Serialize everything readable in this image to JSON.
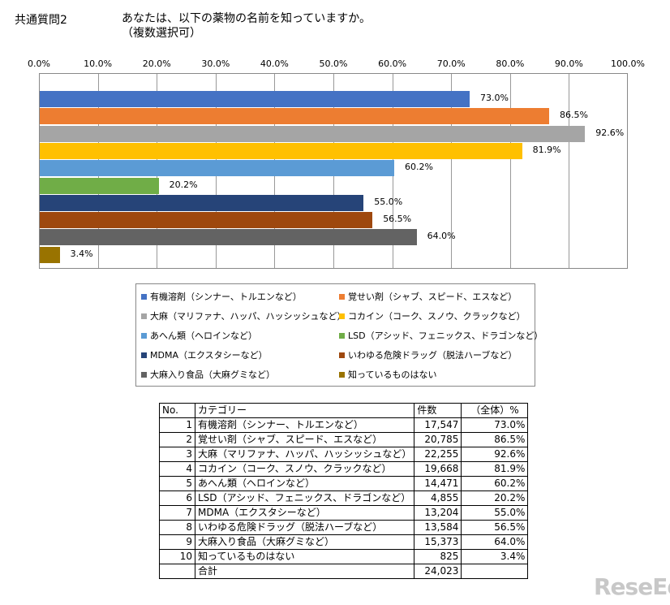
{
  "question": {
    "label": "共通質問2",
    "text": "あなたは、以下の薬物の名前を知っていますか。",
    "subtext": "（複数選択可）"
  },
  "chart_data": {
    "type": "bar",
    "orientation": "horizontal",
    "title": "あなたは、以下の薬物の名前を知っていますか。（複数選択可）",
    "xlim": [
      0,
      100
    ],
    "x_ticks": [
      "0.0%",
      "10.0%",
      "20.0%",
      "30.0%",
      "40.0%",
      "50.0%",
      "60.0%",
      "70.0%",
      "80.0%",
      "90.0%",
      "100.0%"
    ],
    "categories": [
      "有機溶剤（シンナー、トルエンなど）",
      "覚せい剤（シャブ、スピード、エスなど）",
      "大麻（マリファナ、ハッパ、ハッシッシュなど）",
      "コカイン（コーク、スノウ、クラックなど）",
      "あへん類（ヘロインなど）",
      "LSD（アシッド、フェニックス、ドラゴンなど）",
      "MDMA（エクスタシーなど）",
      "いわゆる危険ドラッグ（脱法ハーブなど）",
      "大麻入り食品（大麻グミなど）",
      "知っているものはない"
    ],
    "values": [
      73.0,
      86.5,
      92.6,
      81.9,
      60.2,
      20.2,
      55.0,
      56.5,
      64.0,
      3.4
    ],
    "value_labels": [
      "73.0%",
      "86.5%",
      "92.6%",
      "81.9%",
      "60.2%",
      "20.2%",
      "55.0%",
      "56.5%",
      "64.0%",
      "3.4%"
    ],
    "colors": [
      "#4472C4",
      "#ED7D31",
      "#A5A5A5",
      "#FFC000",
      "#5B9BD5",
      "#70AD47",
      "#264478",
      "#9E480E",
      "#636363",
      "#997300"
    ],
    "grid": true,
    "legend_position": "bottom"
  },
  "table": {
    "headers": [
      "No.",
      "カテゴリー",
      "件数",
      "（全体）%"
    ],
    "rows": [
      [
        "1",
        "有機溶剤（シンナー、トルエンなど）",
        "17,547",
        "73.0%"
      ],
      [
        "2",
        "覚せい剤（シャブ、スピード、エスなど）",
        "20,785",
        "86.5%"
      ],
      [
        "3",
        "大麻（マリファナ、ハッパ、ハッシッシュなど）",
        "22,255",
        "92.6%"
      ],
      [
        "4",
        "コカイン（コーク、スノウ、クラックなど）",
        "19,668",
        "81.9%"
      ],
      [
        "5",
        "あへん類（ヘロインなど）",
        "14,471",
        "60.2%"
      ],
      [
        "6",
        "LSD（アシッド、フェニックス、ドラゴンなど）",
        "4,855",
        "20.2%"
      ],
      [
        "7",
        "MDMA（エクスタシーなど）",
        "13,204",
        "55.0%"
      ],
      [
        "8",
        "いわゆる危険ドラッグ（脱法ハーブなど）",
        "13,584",
        "56.5%"
      ],
      [
        "9",
        "大麻入り食品（大麻グミなど）",
        "15,373",
        "64.0%"
      ],
      [
        "10",
        "知っているものはない",
        "825",
        "3.4%"
      ]
    ],
    "total": {
      "label": "合計",
      "count": "24,023"
    }
  },
  "watermark": "ReseEd"
}
